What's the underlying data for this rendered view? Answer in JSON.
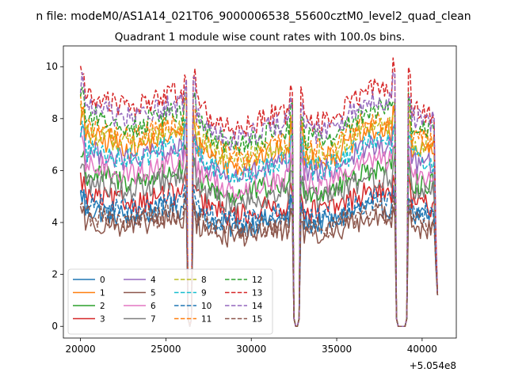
{
  "chart_data": {
    "type": "line",
    "suptitle": "n file: modeM0/AS1A14_021T06_9000006538_55600cztM0_level2_quad_clean",
    "title": "Quadrant 1 module wise count rates with 100.0s bins.",
    "xlabel": "",
    "ylabel": "",
    "x_offset_label": "+5.054e8",
    "xlim": [
      19000,
      42000
    ],
    "ylim": [
      -0.45,
      10.8
    ],
    "x_ticks": [
      20000,
      25000,
      30000,
      35000,
      40000
    ],
    "x_tick_labels": [
      "20000",
      "25000",
      "30000",
      "35000",
      "40000"
    ],
    "y_ticks": [
      0,
      2,
      4,
      6,
      8,
      10
    ],
    "y_tick_labels": [
      "0",
      "2",
      "4",
      "6",
      "8",
      "10"
    ],
    "x_start": 20000,
    "bin_size": 100,
    "x_end": 40900,
    "legend_position": "lower-left",
    "legend_columns": 4,
    "gaps": [
      [
        26300,
        26500
      ],
      [
        32500,
        32800
      ],
      [
        38500,
        39100
      ]
    ],
    "series": [
      {
        "name": "0",
        "color": "#1f77b4",
        "dash": "solid",
        "level": 4.2
      },
      {
        "name": "1",
        "color": "#ff7f0e",
        "dash": "solid",
        "level": 6.8
      },
      {
        "name": "2",
        "color": "#2ca02c",
        "dash": "solid",
        "level": 5.5
      },
      {
        "name": "3",
        "color": "#d62728",
        "dash": "solid",
        "level": 4.7
      },
      {
        "name": "4",
        "color": "#9467bd",
        "dash": "solid",
        "level": 6.3
      },
      {
        "name": "5",
        "color": "#8c564b",
        "dash": "solid",
        "level": 3.8
      },
      {
        "name": "6",
        "color": "#e377c2",
        "dash": "solid",
        "level": 5.8
      },
      {
        "name": "7",
        "color": "#7f7f7f",
        "dash": "solid",
        "level": 5.2
      },
      {
        "name": "8",
        "color": "#bcbd22",
        "dash": "dashed",
        "level": 7.0
      },
      {
        "name": "9",
        "color": "#17becf",
        "dash": "dashed",
        "level": 6.4
      },
      {
        "name": "10",
        "color": "#1f77b4",
        "dash": "dashed",
        "level": 4.4
      },
      {
        "name": "11",
        "color": "#ff7f0e",
        "dash": "dashed",
        "level": 7.2
      },
      {
        "name": "12",
        "color": "#2ca02c",
        "dash": "dashed",
        "level": 7.6
      },
      {
        "name": "13",
        "color": "#d62728",
        "dash": "dashed",
        "level": 8.3
      },
      {
        "name": "14",
        "color": "#9467bd",
        "dash": "dashed",
        "level": 7.9
      },
      {
        "name": "15",
        "color": "#8c564b",
        "dash": "dashed",
        "level": 4.0
      }
    ]
  }
}
